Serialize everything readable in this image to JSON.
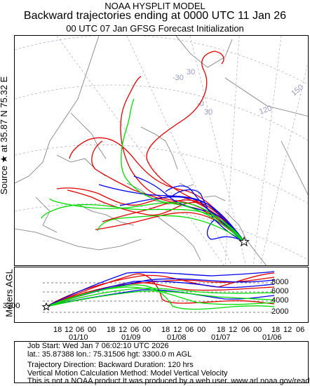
{
  "header": {
    "line1": "NOAA HYSPLIT MODEL",
    "line2": "Backward trajectories ending at 0000 UTC 11 Jan 26",
    "line3": "00 UTC 07 Jan    GFSG  Forecast Initialization"
  },
  "source_label": "Source ★ at   35.87 N   75.32 E",
  "map": {
    "grid_labels": [
      "30",
      "-30",
      "150",
      "120",
      "-0",
      "30"
    ],
    "source_marker": "star-icon"
  },
  "agl": {
    "axis_label": "Meters AGL",
    "start_height": "3300",
    "levels": [
      "8000",
      "6000",
      "4000",
      "2000"
    ],
    "time_ticks": [
      "18",
      "12",
      "06",
      "00",
      "18",
      "12",
      "06",
      "00",
      "18",
      "12",
      "06",
      "00",
      "18",
      "12",
      "06",
      "00",
      "18",
      "12",
      "06",
      "00"
    ],
    "date_ticks": [
      "01/10",
      "01/09",
      "01/08",
      "01/07",
      "01/06"
    ]
  },
  "footer": {
    "job": "Job Start: Wed Jan  7 06:02:10 UTC 2026",
    "coords": "lat.: 35.87388   lon.: 75.31506    hgt: 3300.0 m AGL",
    "direction": "Trajectory Direction: Backward      Duration: 120 hrs",
    "vertical": "Vertical Motion Calculation Method: Model Vertical Velocity",
    "disclaimer": "This is not a NOAA product.It was produced by a web user. www.arl.noaa.gov/ready"
  },
  "colors": {
    "red": "#e00000",
    "blue": "#0000ee",
    "green": "#00dd00",
    "coast": "#777777",
    "grid": "#9999bb"
  }
}
